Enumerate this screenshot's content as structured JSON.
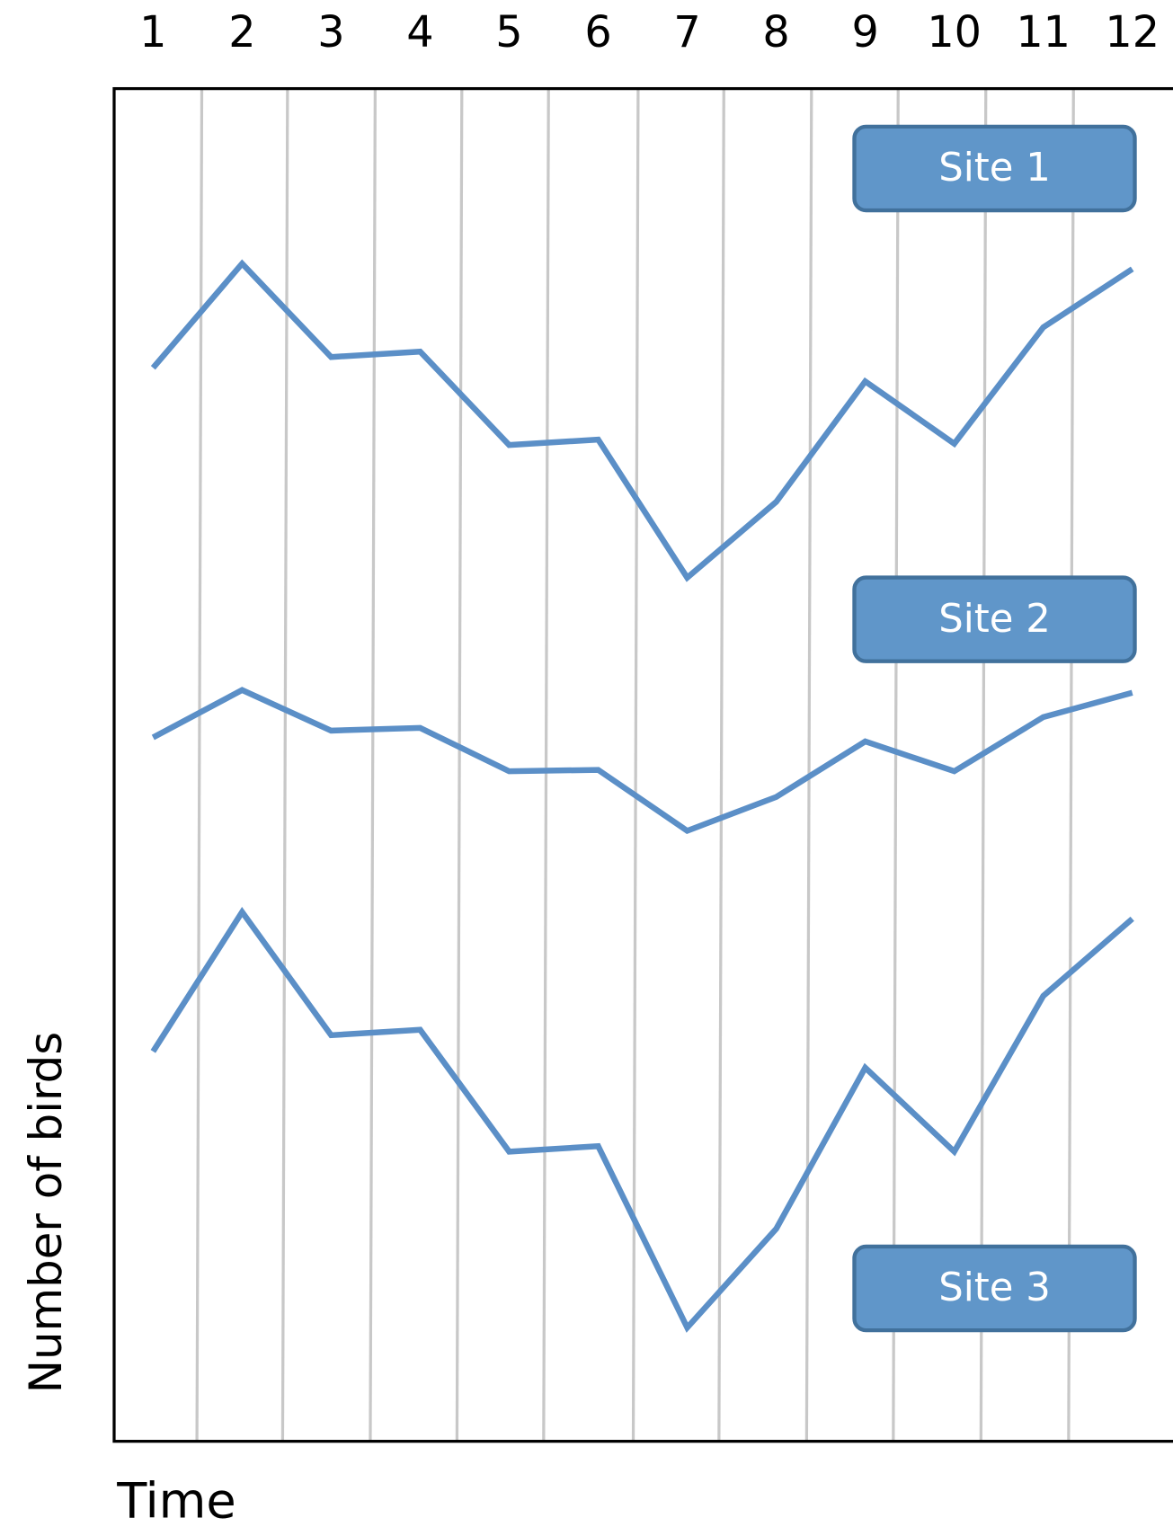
{
  "chart_data": {
    "type": "line",
    "x_label": "Time",
    "y_label": "Number of birds",
    "categories": [
      "1",
      "2",
      "3",
      "4",
      "5",
      "6",
      "7",
      "8",
      "9",
      "10",
      "11",
      "12"
    ],
    "ylim": [
      0,
      100
    ],
    "series": [
      {
        "name": "Site 1",
        "color": "#5b8fc7",
        "values": [
          79.3,
          87.0,
          80.1,
          80.5,
          73.6,
          74.0,
          63.8,
          69.4,
          78.3,
          73.7,
          82.3,
          86.6
        ]
      },
      {
        "name": "Site 2",
        "color": "#5b8fc7",
        "values": [
          52.0,
          55.5,
          52.5,
          52.7,
          49.5,
          49.6,
          45.1,
          47.6,
          51.7,
          49.5,
          53.5,
          55.3
        ]
      },
      {
        "name": "Site 3",
        "color": "#5b8fc7",
        "values": [
          28.8,
          39.1,
          30.0,
          30.4,
          21.4,
          21.8,
          8.4,
          15.7,
          27.6,
          21.4,
          32.9,
          38.6
        ]
      }
    ]
  }
}
